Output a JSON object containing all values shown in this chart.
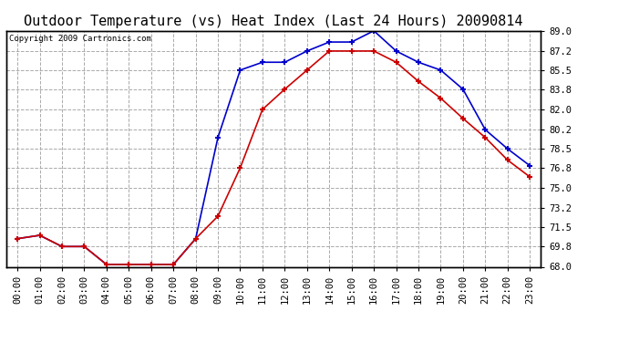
{
  "title": "Outdoor Temperature (vs) Heat Index (Last 24 Hours) 20090814",
  "copyright_text": "Copyright 2009 Cartronics.com",
  "hours": [
    "00:00",
    "01:00",
    "02:00",
    "03:00",
    "04:00",
    "05:00",
    "06:00",
    "07:00",
    "08:00",
    "09:00",
    "10:00",
    "11:00",
    "12:00",
    "13:00",
    "14:00",
    "15:00",
    "16:00",
    "17:00",
    "18:00",
    "19:00",
    "20:00",
    "21:00",
    "22:00",
    "23:00"
  ],
  "heat_index": [
    70.5,
    70.8,
    69.8,
    69.8,
    68.2,
    68.2,
    68.2,
    68.2,
    70.5,
    79.5,
    85.5,
    86.2,
    86.2,
    87.2,
    88.0,
    88.0,
    89.0,
    87.2,
    86.2,
    85.5,
    83.8,
    80.2,
    78.5,
    77.0
  ],
  "temp": [
    70.5,
    70.8,
    69.8,
    69.8,
    68.2,
    68.2,
    68.2,
    68.2,
    70.5,
    72.5,
    76.8,
    82.0,
    83.8,
    85.5,
    87.2,
    87.2,
    87.2,
    86.2,
    84.5,
    83.0,
    81.2,
    79.5,
    77.5,
    76.0
  ],
  "heat_index_color": "#0000cc",
  "temp_color": "#cc0000",
  "ylim": [
    68.0,
    89.0
  ],
  "yticks": [
    68.0,
    69.8,
    71.5,
    73.2,
    75.0,
    76.8,
    78.5,
    80.2,
    82.0,
    83.8,
    85.5,
    87.2,
    89.0
  ],
  "background_color": "#ffffff",
  "plot_bg_color": "#ffffff",
  "grid_color": "#aaaaaa",
  "title_fontsize": 11,
  "copyright_fontsize": 6.5,
  "axis_fontsize": 7.5,
  "marker": "+"
}
